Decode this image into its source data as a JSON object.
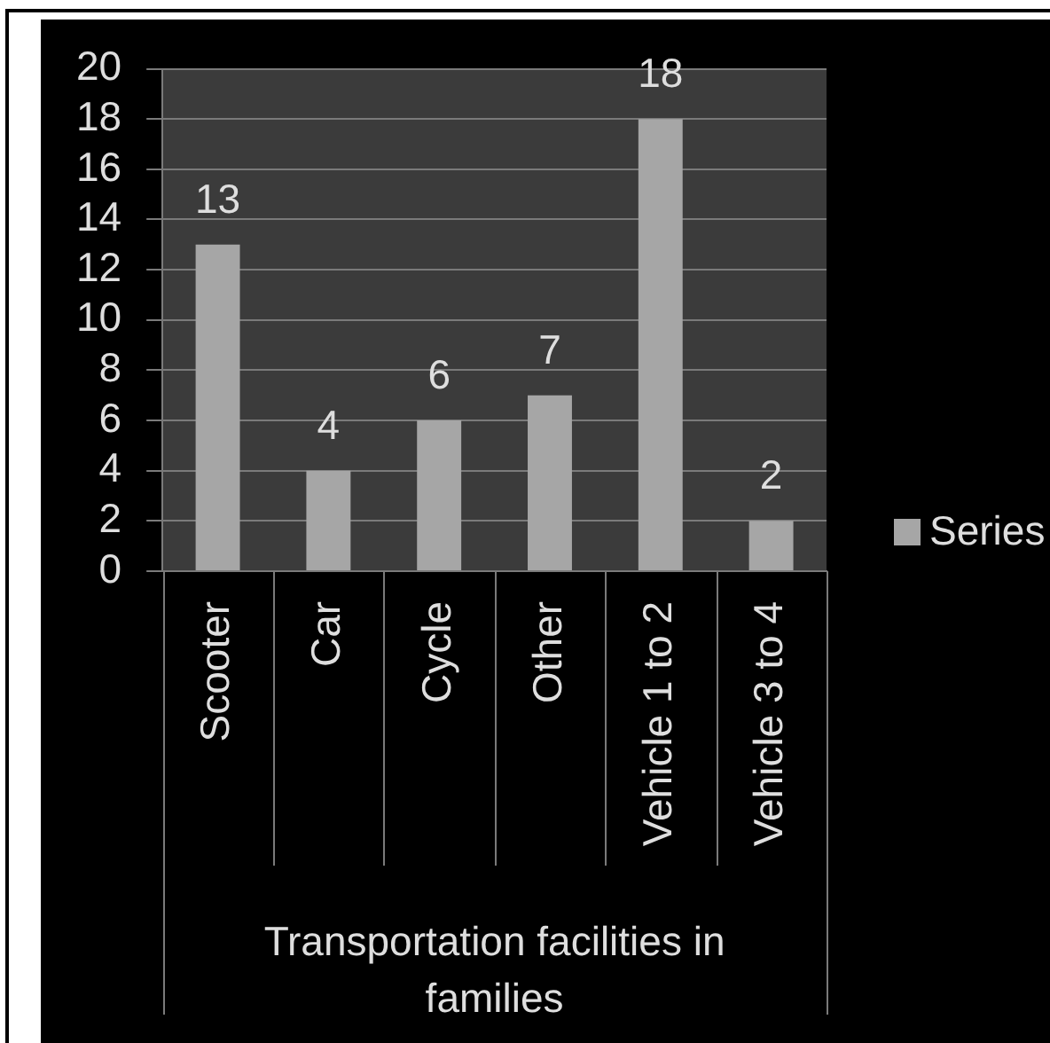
{
  "chart_data": {
    "type": "bar",
    "xlabel": "Transportation facilities in families",
    "categories": [
      "Scooter",
      "Car",
      "Cycle",
      "Other",
      "Vehicle 1 to 2",
      "Vehicle 3 to 4"
    ],
    "series": [
      {
        "name": "Series",
        "color": "#a6a6a6",
        "values": [
          13,
          4,
          6,
          7,
          18,
          2
        ]
      }
    ],
    "ylim": [
      0,
      20
    ],
    "yticks": [
      0,
      2,
      4,
      6,
      8,
      10,
      12,
      14,
      16,
      18,
      20
    ],
    "grid": "y",
    "legend": "right",
    "data_labels": true
  }
}
